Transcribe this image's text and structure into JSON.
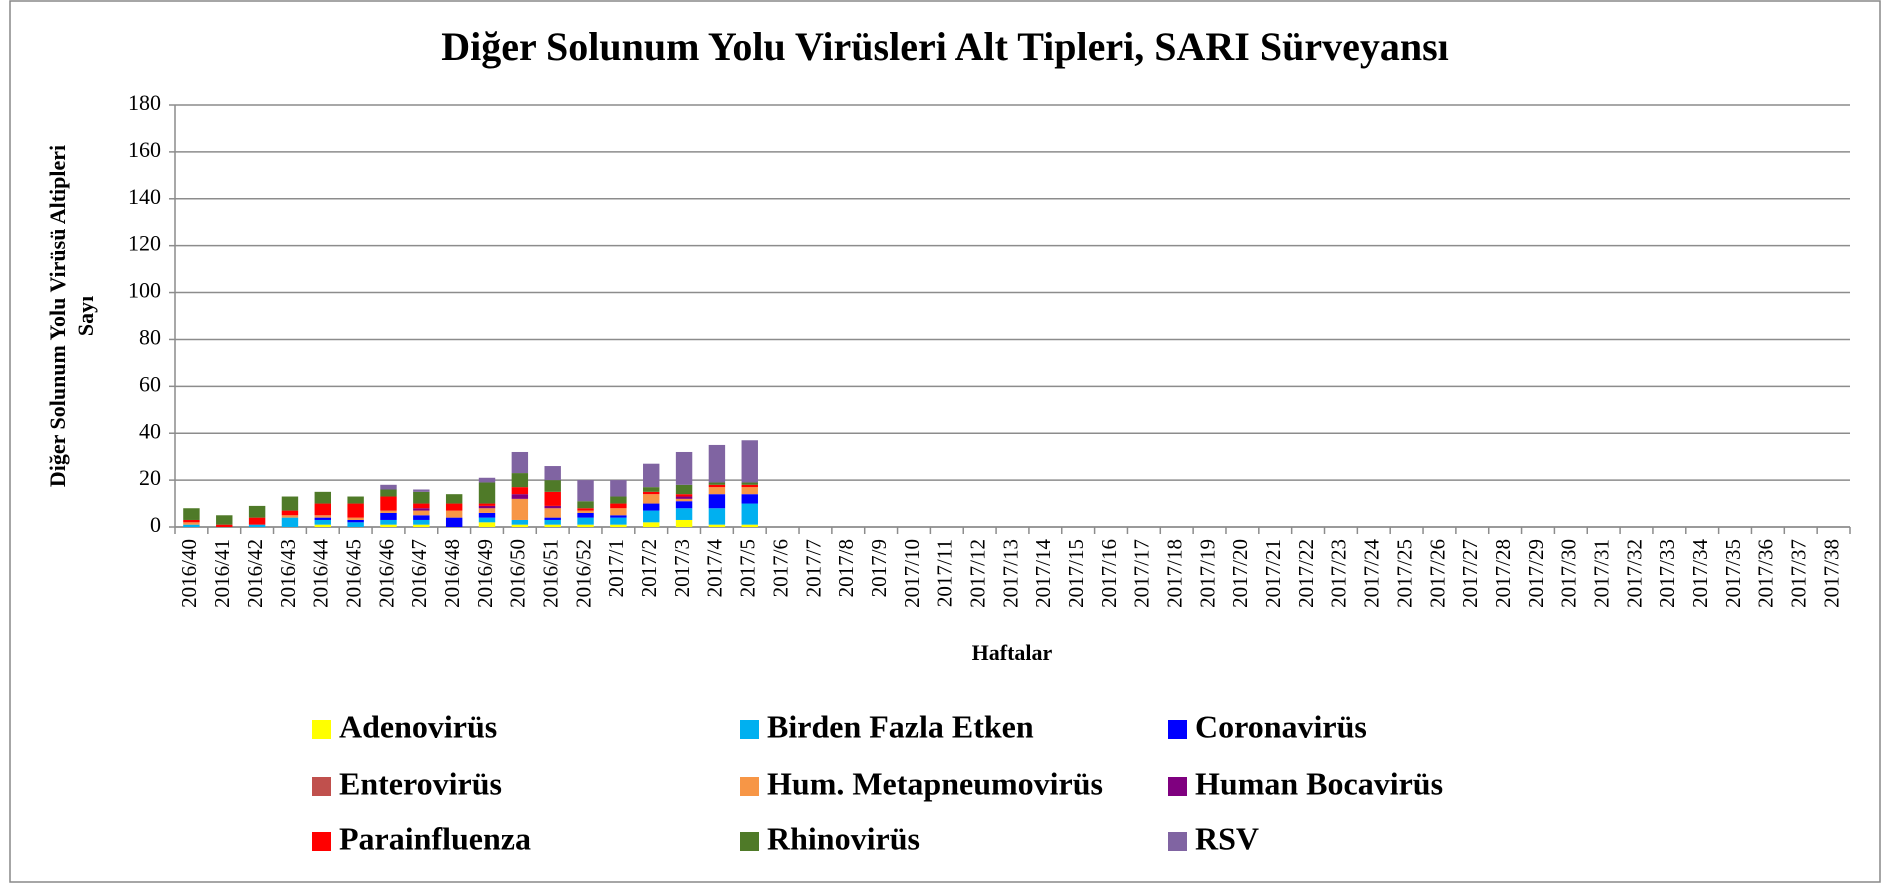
{
  "chart_data": {
    "type": "stacked_bar",
    "title": "Diğer Solunum Yolu Virüsleri Alt Tipleri, SARI Sürveyansı",
    "ylabel": [
      "Diğer Solunum Yolu Virüsü Altipleri",
      "Sayı"
    ],
    "xlabel": "Haftalar",
    "legend": "bottom",
    "grid": true,
    "ylim": [
      0,
      180
    ],
    "yticks": [
      0,
      20,
      40,
      60,
      80,
      100,
      120,
      140,
      160,
      180
    ],
    "categories": [
      "2016/40",
      "2016/41",
      "2016/42",
      "2016/43",
      "2016/44",
      "2016/45",
      "2016/46",
      "2016/47",
      "2016/48",
      "2016/49",
      "2016/50",
      "2016/51",
      "2016/52",
      "2017/1",
      "2017/2",
      "2017/3",
      "2017/4",
      "2017/5",
      "2017/6",
      "2017/7",
      "2017/8",
      "2017/9",
      "2017/10",
      "2017/11",
      "2017/12",
      "2017/13",
      "2017/14",
      "2017/15",
      "2017/16",
      "2017/17",
      "2017/18",
      "2017/19",
      "2017/20",
      "2017/21",
      "2017/22",
      "2017/23",
      "2017/24",
      "2017/25",
      "2017/26",
      "2017/27",
      "2017/28",
      "2017/29",
      "2017/30",
      "2017/31",
      "2017/32",
      "2017/33",
      "2017/34",
      "2017/35",
      "2017/36",
      "2017/37",
      "2017/38"
    ],
    "series": [
      {
        "name": "Adenovirüs",
        "color": "#ffff00",
        "values": [
          0,
          0,
          0,
          0,
          1,
          0,
          1,
          1,
          0,
          2,
          1,
          1,
          1,
          1,
          2,
          3,
          1,
          1,
          null,
          null,
          null,
          null,
          null,
          null,
          null,
          null,
          null,
          null,
          null,
          null,
          null,
          null,
          null,
          null,
          null,
          null,
          null,
          null,
          null,
          null,
          null,
          null,
          null,
          null,
          null,
          null,
          null,
          null,
          null,
          null,
          null
        ]
      },
      {
        "name": "Birden Fazla Etken",
        "color": "#00b0f0",
        "values": [
          1,
          0,
          1,
          4,
          2,
          2,
          2,
          2,
          0,
          2,
          2,
          2,
          3,
          3,
          5,
          5,
          7,
          9,
          null,
          null,
          null,
          null,
          null,
          null,
          null,
          null,
          null,
          null,
          null,
          null,
          null,
          null,
          null,
          null,
          null,
          null,
          null,
          null,
          null,
          null,
          null,
          null,
          null,
          null,
          null,
          null,
          null,
          null,
          null,
          null,
          null
        ]
      },
      {
        "name": "Coronavirüs",
        "color": "#0000ff",
        "values": [
          0,
          0,
          0,
          0,
          1,
          1,
          3,
          2,
          4,
          2,
          0,
          1,
          2,
          1,
          3,
          3,
          6,
          4,
          null,
          null,
          null,
          null,
          null,
          null,
          null,
          null,
          null,
          null,
          null,
          null,
          null,
          null,
          null,
          null,
          null,
          null,
          null,
          null,
          null,
          null,
          null,
          null,
          null,
          null,
          null,
          null,
          null,
          null,
          null,
          null,
          null
        ]
      },
      {
        "name": "Enterovirüs",
        "color": "#c0504d",
        "values": [
          0,
          0,
          0,
          0,
          0,
          0,
          0,
          0,
          0,
          0,
          0,
          0,
          0,
          0,
          0,
          0,
          0,
          0,
          null,
          null,
          null,
          null,
          null,
          null,
          null,
          null,
          null,
          null,
          null,
          null,
          null,
          null,
          null,
          null,
          null,
          null,
          null,
          null,
          null,
          null,
          null,
          null,
          null,
          null,
          null,
          null,
          null,
          null,
          null,
          null,
          null
        ]
      },
      {
        "name": "Hum. Metapneumovirüs",
        "color": "#f79646",
        "values": [
          1,
          0,
          0,
          1,
          1,
          1,
          1,
          2,
          3,
          2,
          9,
          4,
          1,
          3,
          4,
          1,
          3,
          3,
          null,
          null,
          null,
          null,
          null,
          null,
          null,
          null,
          null,
          null,
          null,
          null,
          null,
          null,
          null,
          null,
          null,
          null,
          null,
          null,
          null,
          null,
          null,
          null,
          null,
          null,
          null,
          null,
          null,
          null,
          null,
          null,
          null
        ]
      },
      {
        "name": "Human Bocavirüs",
        "color": "#7f007f",
        "values": [
          0,
          0,
          0,
          0,
          0,
          0,
          0,
          1,
          0,
          1,
          2,
          1,
          0,
          0,
          0,
          1,
          0,
          0,
          null,
          null,
          null,
          null,
          null,
          null,
          null,
          null,
          null,
          null,
          null,
          null,
          null,
          null,
          null,
          null,
          null,
          null,
          null,
          null,
          null,
          null,
          null,
          null,
          null,
          null,
          null,
          null,
          null,
          null,
          null,
          null,
          null
        ]
      },
      {
        "name": "Parainfluenza",
        "color": "#ff0000",
        "values": [
          1,
          1,
          3,
          2,
          5,
          6,
          6,
          2,
          3,
          1,
          3,
          6,
          1,
          2,
          1,
          1,
          1,
          1,
          null,
          null,
          null,
          null,
          null,
          null,
          null,
          null,
          null,
          null,
          null,
          null,
          null,
          null,
          null,
          null,
          null,
          null,
          null,
          null,
          null,
          null,
          null,
          null,
          null,
          null,
          null,
          null,
          null,
          null,
          null,
          null,
          null
        ]
      },
      {
        "name": "Rhinovirüs",
        "color": "#4f7a28",
        "values": [
          5,
          4,
          5,
          6,
          5,
          3,
          3,
          5,
          4,
          9,
          6,
          5,
          3,
          3,
          2,
          4,
          1,
          1,
          null,
          null,
          null,
          null,
          null,
          null,
          null,
          null,
          null,
          null,
          null,
          null,
          null,
          null,
          null,
          null,
          null,
          null,
          null,
          null,
          null,
          null,
          null,
          null,
          null,
          null,
          null,
          null,
          null,
          null,
          null,
          null,
          null
        ]
      },
      {
        "name": "RSV",
        "color": "#8064a2",
        "values": [
          0,
          0,
          0,
          0,
          0,
          0,
          2,
          1,
          0,
          2,
          9,
          6,
          9,
          7,
          10,
          14,
          16,
          18,
          null,
          null,
          null,
          null,
          null,
          null,
          null,
          null,
          null,
          null,
          null,
          null,
          null,
          null,
          null,
          null,
          null,
          null,
          null,
          null,
          null,
          null,
          null,
          null,
          null,
          null,
          null,
          null,
          null,
          null,
          null,
          null,
          null
        ]
      }
    ]
  }
}
